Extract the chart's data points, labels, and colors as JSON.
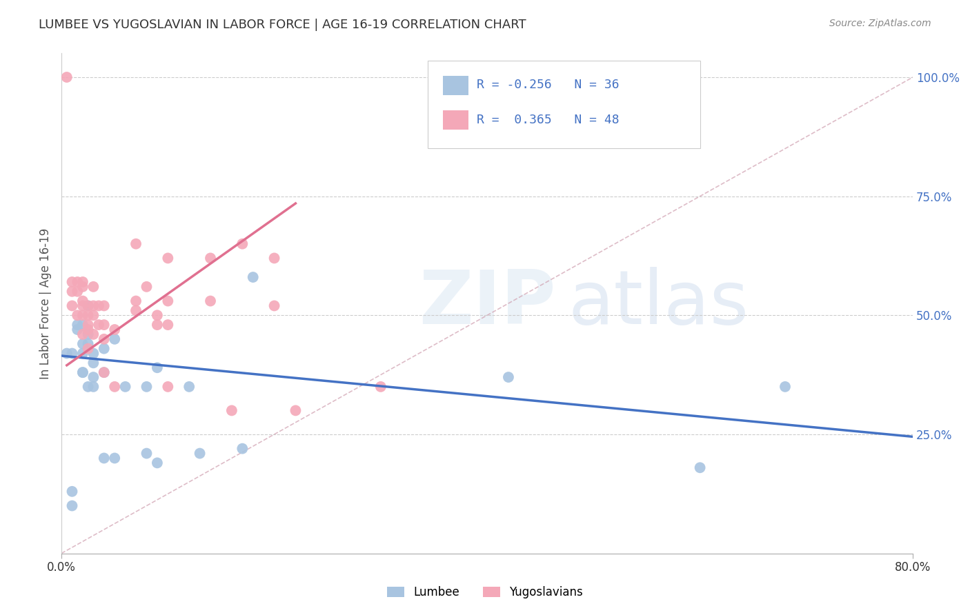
{
  "title": "LUMBEE VS YUGOSLAVIAN IN LABOR FORCE | AGE 16-19 CORRELATION CHART",
  "source": "Source: ZipAtlas.com",
  "ylabel": "In Labor Force | Age 16-19",
  "xlim": [
    0.0,
    0.8
  ],
  "ylim": [
    0.0,
    1.05
  ],
  "legend": {
    "lumbee_R": "-0.256",
    "lumbee_N": "36",
    "yugo_R": "0.365",
    "yugo_N": "48"
  },
  "lumbee_color": "#a8c4e0",
  "lumbee_line_color": "#4472c4",
  "yugo_color": "#f4a8b8",
  "yugo_line_color": "#e07090",
  "diagonal_color": "#d0a0b0",
  "lumbee_x": [
    0.005,
    0.01,
    0.01,
    0.01,
    0.015,
    0.015,
    0.02,
    0.02,
    0.02,
    0.02,
    0.02,
    0.025,
    0.025,
    0.025,
    0.025,
    0.03,
    0.03,
    0.03,
    0.03,
    0.04,
    0.04,
    0.04,
    0.05,
    0.05,
    0.06,
    0.08,
    0.08,
    0.09,
    0.09,
    0.12,
    0.13,
    0.17,
    0.18,
    0.42,
    0.6,
    0.68
  ],
  "lumbee_y": [
    0.42,
    0.42,
    0.1,
    0.13,
    0.48,
    0.47,
    0.48,
    0.44,
    0.42,
    0.38,
    0.38,
    0.52,
    0.46,
    0.44,
    0.35,
    0.42,
    0.4,
    0.37,
    0.35,
    0.43,
    0.38,
    0.2,
    0.45,
    0.2,
    0.35,
    0.35,
    0.21,
    0.39,
    0.19,
    0.35,
    0.21,
    0.22,
    0.58,
    0.37,
    0.18,
    0.35
  ],
  "yugo_x": [
    0.005,
    0.01,
    0.01,
    0.01,
    0.015,
    0.015,
    0.015,
    0.02,
    0.02,
    0.02,
    0.02,
    0.02,
    0.02,
    0.025,
    0.025,
    0.025,
    0.025,
    0.025,
    0.03,
    0.03,
    0.03,
    0.03,
    0.035,
    0.035,
    0.04,
    0.04,
    0.04,
    0.04,
    0.05,
    0.05,
    0.07,
    0.07,
    0.07,
    0.08,
    0.09,
    0.09,
    0.1,
    0.1,
    0.1,
    0.1,
    0.14,
    0.14,
    0.16,
    0.17,
    0.2,
    0.2,
    0.22,
    0.3
  ],
  "yugo_y": [
    1.0,
    0.57,
    0.55,
    0.52,
    0.57,
    0.55,
    0.5,
    0.57,
    0.56,
    0.53,
    0.52,
    0.5,
    0.46,
    0.52,
    0.5,
    0.48,
    0.47,
    0.43,
    0.56,
    0.52,
    0.5,
    0.46,
    0.52,
    0.48,
    0.52,
    0.48,
    0.45,
    0.38,
    0.47,
    0.35,
    0.65,
    0.53,
    0.51,
    0.56,
    0.5,
    0.48,
    0.62,
    0.53,
    0.48,
    0.35,
    0.62,
    0.53,
    0.3,
    0.65,
    0.62,
    0.52,
    0.3,
    0.35
  ],
  "lumbee_line_x": [
    0.0,
    0.8
  ],
  "lumbee_line_y": [
    0.415,
    0.245
  ],
  "yugo_line_x": [
    0.005,
    0.22
  ],
  "yugo_line_y": [
    0.395,
    0.735
  ]
}
